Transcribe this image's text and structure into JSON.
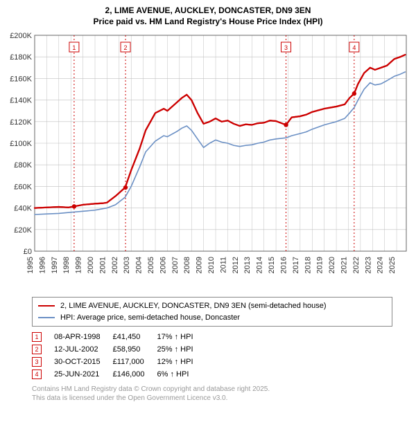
{
  "title_line1": "2, LIME AVENUE, AUCKLEY, DONCASTER, DN9 3EN",
  "title_line2": "Price paid vs. HM Land Registry's House Price Index (HPI)",
  "chart": {
    "type": "line",
    "background_color": "#ffffff",
    "grid_color": "#bfbfbf",
    "axis_color": "#666666",
    "xlim": [
      1995,
      2025.8
    ],
    "ylim": [
      0,
      200000
    ],
    "ytick_step": 20000,
    "yticks": [
      "£0",
      "£20K",
      "£40K",
      "£60K",
      "£80K",
      "£100K",
      "£120K",
      "£140K",
      "£160K",
      "£180K",
      "£200K"
    ],
    "xticks": [
      1995,
      1996,
      1997,
      1998,
      1999,
      2000,
      2001,
      2002,
      2003,
      2004,
      2005,
      2006,
      2007,
      2008,
      2009,
      2010,
      2011,
      2012,
      2013,
      2014,
      2015,
      2016,
      2017,
      2018,
      2019,
      2020,
      2021,
      2022,
      2023,
      2024,
      2025
    ],
    "series": [
      {
        "name": "price-paid",
        "label": "2, LIME AVENUE, AUCKLEY, DONCASTER, DN9 3EN (semi-detached house)",
        "color": "#cc0000",
        "line_width": 2.2,
        "points": [
          [
            1995,
            40000
          ],
          [
            1996,
            40500
          ],
          [
            1997,
            41000
          ],
          [
            1997.8,
            40500
          ],
          [
            1998.27,
            41450
          ],
          [
            1999,
            43000
          ],
          [
            2000,
            44000
          ],
          [
            2000.7,
            44500
          ],
          [
            2001,
            45000
          ],
          [
            2001.7,
            51000
          ],
          [
            2002.5,
            58950
          ],
          [
            2003,
            75000
          ],
          [
            2003.7,
            95000
          ],
          [
            2004.2,
            112000
          ],
          [
            2005,
            128000
          ],
          [
            2005.7,
            132000
          ],
          [
            2006,
            130000
          ],
          [
            2006.8,
            138000
          ],
          [
            2007.2,
            142000
          ],
          [
            2007.6,
            145000
          ],
          [
            2008,
            140000
          ],
          [
            2008.5,
            128000
          ],
          [
            2009,
            118000
          ],
          [
            2009.5,
            120000
          ],
          [
            2010,
            123000
          ],
          [
            2010.5,
            120000
          ],
          [
            2011,
            121000
          ],
          [
            2011.5,
            118000
          ],
          [
            2012,
            116000
          ],
          [
            2012.5,
            117500
          ],
          [
            2013,
            117000
          ],
          [
            2013.5,
            118500
          ],
          [
            2014,
            119000
          ],
          [
            2014.5,
            121000
          ],
          [
            2015,
            120500
          ],
          [
            2015.83,
            117000
          ],
          [
            2016.3,
            124000
          ],
          [
            2017,
            125000
          ],
          [
            2017.5,
            126500
          ],
          [
            2018,
            129000
          ],
          [
            2018.5,
            130500
          ],
          [
            2019,
            132000
          ],
          [
            2019.5,
            133000
          ],
          [
            2020,
            134000
          ],
          [
            2020.7,
            136000
          ],
          [
            2021.1,
            142000
          ],
          [
            2021.48,
            146000
          ],
          [
            2021.8,
            155000
          ],
          [
            2022.3,
            165000
          ],
          [
            2022.8,
            170000
          ],
          [
            2023.2,
            168000
          ],
          [
            2023.7,
            170000
          ],
          [
            2024.2,
            172000
          ],
          [
            2024.8,
            178000
          ],
          [
            2025.3,
            180000
          ],
          [
            2025.7,
            182000
          ]
        ]
      },
      {
        "name": "hpi",
        "label": "HPI: Average price, semi-detached house, Doncaster",
        "color": "#6a8fc4",
        "line_width": 1.6,
        "points": [
          [
            1995,
            34000
          ],
          [
            1996,
            34500
          ],
          [
            1997,
            35000
          ],
          [
            1998,
            36000
          ],
          [
            1999,
            37000
          ],
          [
            2000,
            38000
          ],
          [
            2001,
            40000
          ],
          [
            2001.7,
            43000
          ],
          [
            2002.5,
            50000
          ],
          [
            2003,
            60000
          ],
          [
            2003.7,
            78000
          ],
          [
            2004.2,
            92000
          ],
          [
            2005,
            102000
          ],
          [
            2005.7,
            107000
          ],
          [
            2006,
            106000
          ],
          [
            2006.8,
            111000
          ],
          [
            2007.2,
            114000
          ],
          [
            2007.6,
            116000
          ],
          [
            2008,
            112000
          ],
          [
            2008.5,
            104000
          ],
          [
            2009,
            96000
          ],
          [
            2009.5,
            100000
          ],
          [
            2010,
            103000
          ],
          [
            2010.5,
            101000
          ],
          [
            2011,
            100000
          ],
          [
            2011.5,
            98000
          ],
          [
            2012,
            97000
          ],
          [
            2012.5,
            98000
          ],
          [
            2013,
            98500
          ],
          [
            2013.5,
            100000
          ],
          [
            2014,
            101000
          ],
          [
            2014.5,
            103000
          ],
          [
            2015,
            104000
          ],
          [
            2015.83,
            105000
          ],
          [
            2016.3,
            107000
          ],
          [
            2017,
            109000
          ],
          [
            2017.5,
            110500
          ],
          [
            2018,
            113000
          ],
          [
            2018.5,
            115000
          ],
          [
            2019,
            117000
          ],
          [
            2019.5,
            118500
          ],
          [
            2020,
            120000
          ],
          [
            2020.7,
            123000
          ],
          [
            2021.1,
            128000
          ],
          [
            2021.48,
            133000
          ],
          [
            2021.8,
            140000
          ],
          [
            2022.3,
            150000
          ],
          [
            2022.8,
            156000
          ],
          [
            2023.2,
            154000
          ],
          [
            2023.7,
            155000
          ],
          [
            2024.2,
            158000
          ],
          [
            2024.8,
            162000
          ],
          [
            2025.3,
            164000
          ],
          [
            2025.7,
            166000
          ]
        ]
      }
    ],
    "markers": [
      {
        "n": "1",
        "x": 1998.27,
        "y": 41450
      },
      {
        "n": "2",
        "x": 2002.53,
        "y": 58950
      },
      {
        "n": "3",
        "x": 2015.83,
        "y": 117000
      },
      {
        "n": "4",
        "x": 2021.48,
        "y": 146000
      }
    ],
    "marker_line_color": "#cc0000",
    "marker_line_dash": "2,3",
    "marker_point_color": "#cc0000",
    "marker_box_border": "#cc0000",
    "marker_box_text": "#cc0000"
  },
  "legend": {
    "rows": [
      {
        "color": "#cc0000",
        "label": "2, LIME AVENUE, AUCKLEY, DONCASTER, DN9 3EN (semi-detached house)"
      },
      {
        "color": "#6a8fc4",
        "label": "HPI: Average price, semi-detached house, Doncaster"
      }
    ]
  },
  "transactions": [
    {
      "n": "1",
      "date": "08-APR-1998",
      "price": "£41,450",
      "delta": "17% ↑ HPI"
    },
    {
      "n": "2",
      "date": "12-JUL-2002",
      "price": "£58,950",
      "delta": "25% ↑ HPI"
    },
    {
      "n": "3",
      "date": "30-OCT-2015",
      "price": "£117,000",
      "delta": "12% ↑ HPI"
    },
    {
      "n": "4",
      "date": "25-JUN-2021",
      "price": "£146,000",
      "delta": "6% ↑ HPI"
    }
  ],
  "footer_line1": "Contains HM Land Registry data © Crown copyright and database right 2025.",
  "footer_line2": "This data is licensed under the Open Government Licence v3.0."
}
